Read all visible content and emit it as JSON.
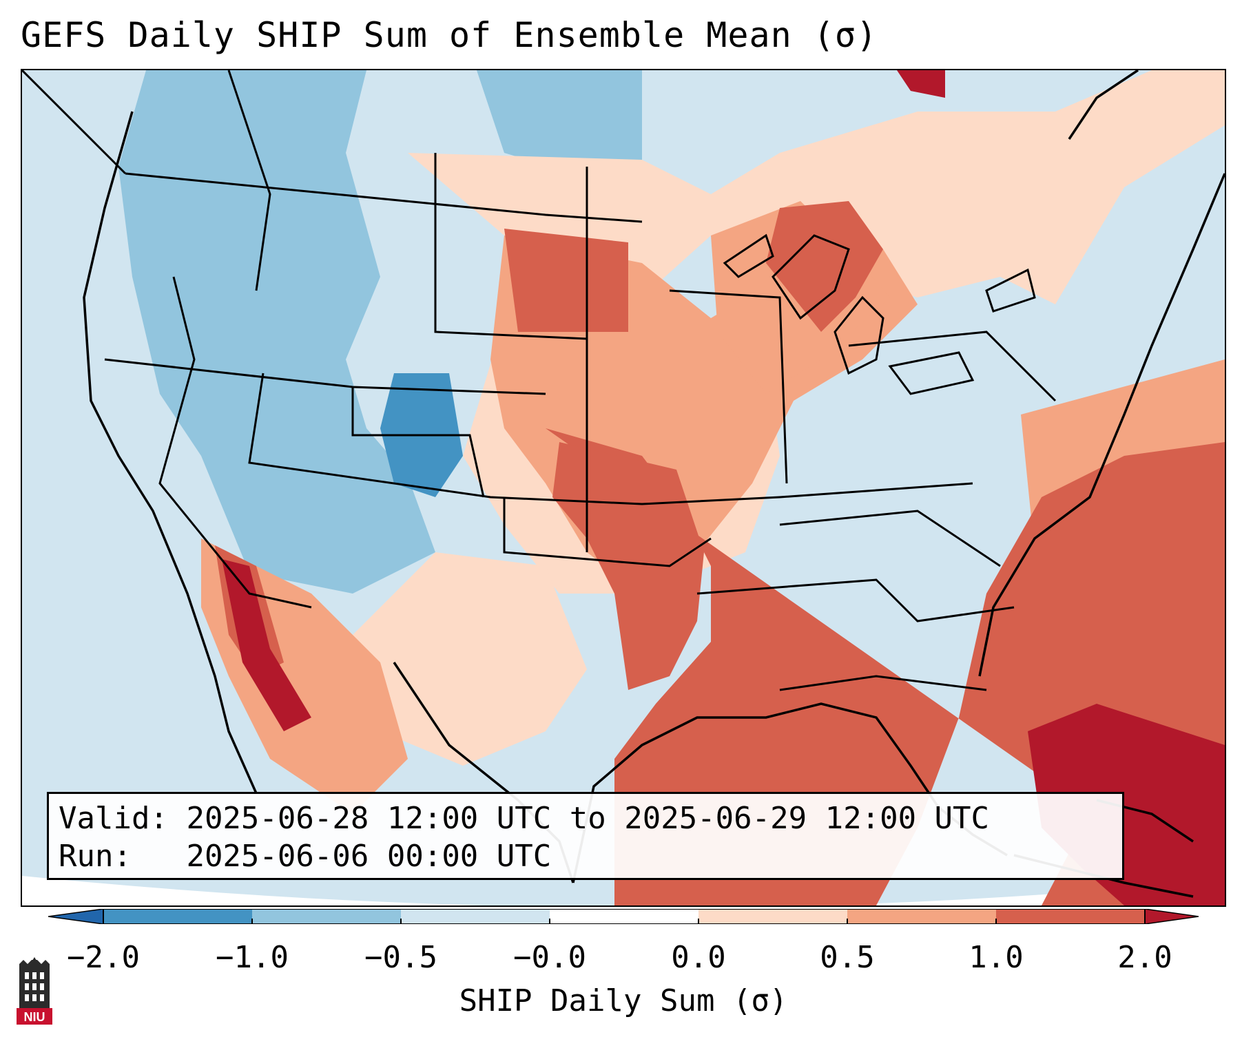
{
  "title": "GEFS Daily SHIP Sum of Ensemble Mean (σ)",
  "info": {
    "valid_label": "Valid:",
    "valid_value": "2025-06-28 12:00 UTC to 2025-06-29 12:00 UTC",
    "run_label": "Run:",
    "run_value": "2025-06-06 00:00 UTC"
  },
  "colorbar": {
    "label": "SHIP Daily Sum (σ)",
    "ticks": [
      "−2.0",
      "−1.0",
      "−0.5",
      "−0.0",
      "0.0",
      "0.5",
      "1.0",
      "2.0"
    ],
    "colors": [
      "#4393c3",
      "#92c5de",
      "#d1e5f0",
      "#ffffff",
      "#fddbc7",
      "#f4a582",
      "#d6604d",
      "#b2182b"
    ],
    "under_color": "#2166ac",
    "over_color": "#67001f"
  },
  "logo": {
    "text": "NIU",
    "icon": "niu-tower-logo-icon"
  }
}
